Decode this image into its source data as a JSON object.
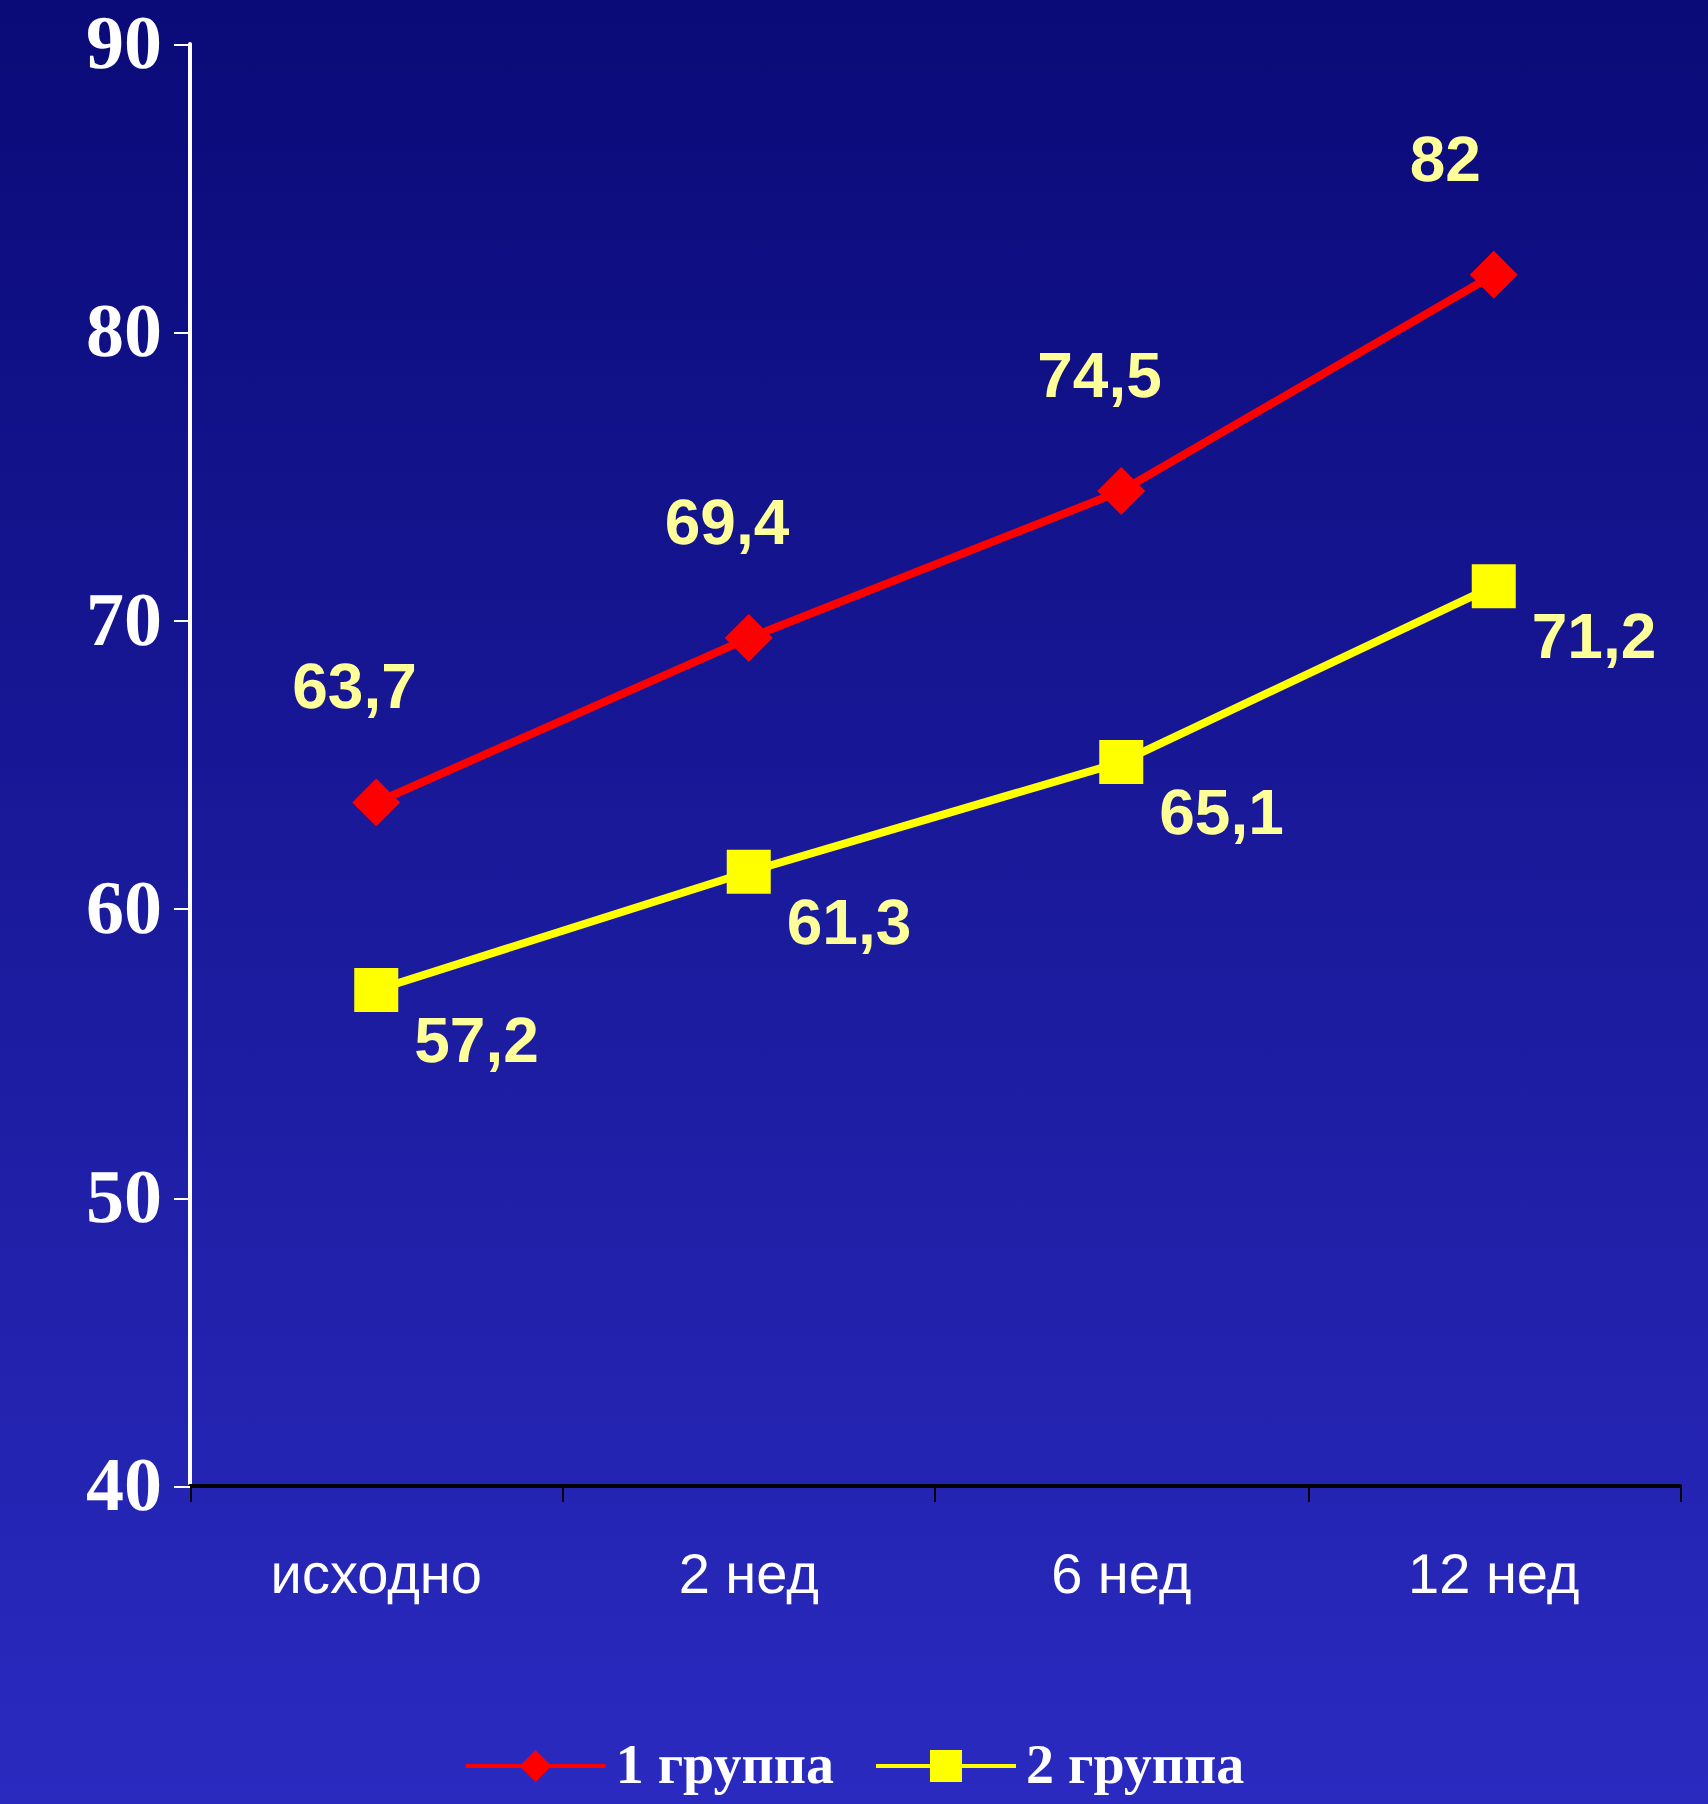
{
  "chart_data": {
    "type": "line",
    "categories": [
      "исходно",
      "2 нед",
      "6 нед",
      "12 нед"
    ],
    "series": [
      {
        "name": "1 группа",
        "color": "#ff0000",
        "marker": "diamond",
        "values": [
          63.7,
          69.4,
          74.5,
          82
        ],
        "value_labels": [
          "63,7",
          "69,4",
          "74,5",
          "82"
        ]
      },
      {
        "name": "2 группа",
        "color": "#ffff00",
        "marker": "square",
        "values": [
          57.2,
          61.3,
          65.1,
          71.2
        ],
        "value_labels": [
          "57,2",
          "61,3",
          "65,1",
          "71,2"
        ]
      }
    ],
    "ylim": [
      40,
      90
    ],
    "yticks": [
      40,
      50,
      60,
      70,
      80,
      90
    ],
    "grid": false,
    "legend": "bottom",
    "line_style": "solid"
  }
}
